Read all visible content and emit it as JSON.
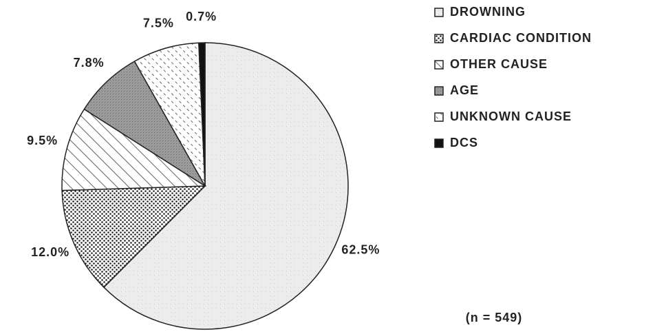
{
  "chart_data": {
    "type": "pie",
    "categories": [
      "DROWNING",
      "CARDIAC CONDITION",
      "OTHER CAUSE",
      "AGE",
      "UNKNOWN CAUSE",
      "DCS"
    ],
    "values": [
      62.5,
      12.0,
      9.5,
      7.8,
      7.5,
      0.7
    ],
    "value_labels": [
      "62.5%",
      "12.0%",
      "9.5%",
      "7.8%",
      "7.5%",
      "0.7%"
    ],
    "colors": [
      "#ececec",
      "#ffffff",
      "#ffffff",
      "#9a9a9a",
      "#ffffff",
      "#111111"
    ],
    "annotation": "(n = 549)",
    "legend": "right"
  }
}
